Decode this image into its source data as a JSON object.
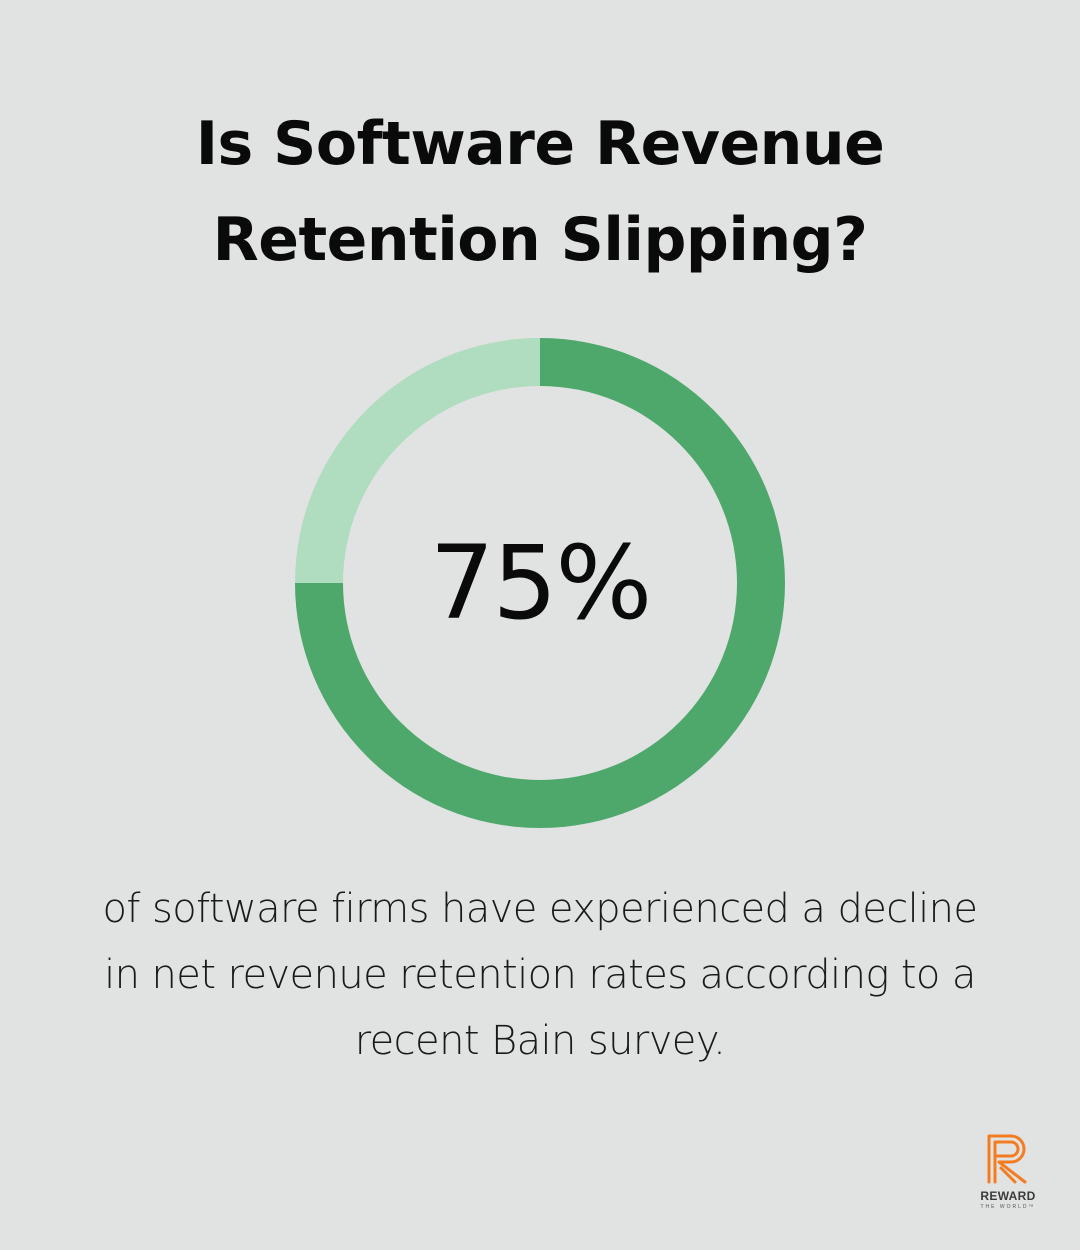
{
  "title_lines": [
    "Is Software Revenue",
    "Retention Slipping?"
  ],
  "chart_data": {
    "type": "pie",
    "variant": "donut",
    "value_label": "75%",
    "values": [
      75,
      25
    ],
    "colors": {
      "filled": "#4ea86c",
      "remainder": "#b0dcc0",
      "background": "#e1e3e2"
    }
  },
  "caption_lines": [
    "of software firms have experienced a decline",
    "in net revenue retention rates according to a",
    "recent Bain survey."
  ],
  "logo": {
    "wordmark": "REWARD",
    "tagline": "THE WORLD™",
    "color": "#f47c20"
  }
}
